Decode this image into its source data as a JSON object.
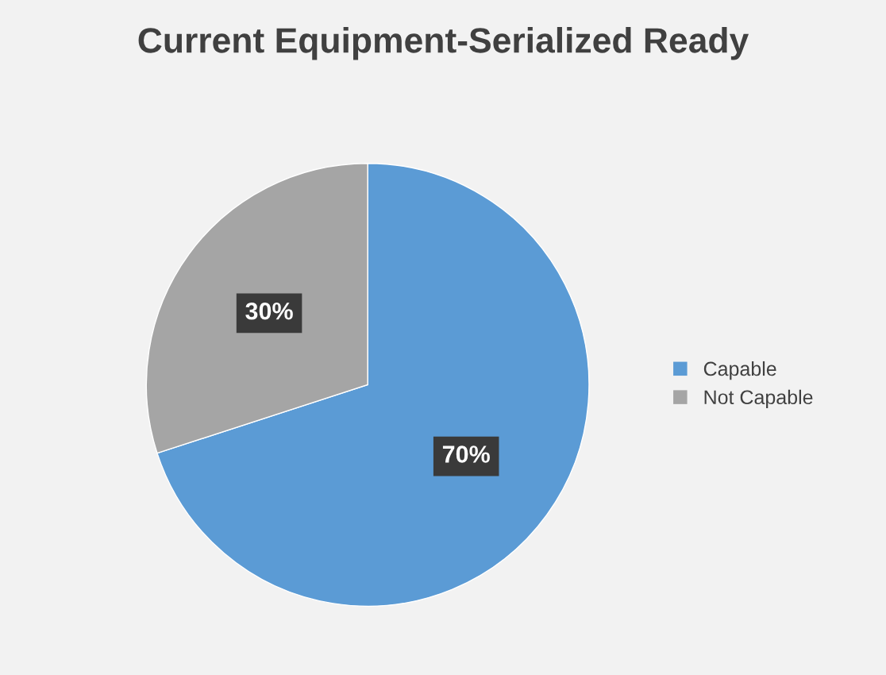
{
  "chart_data": {
    "type": "pie",
    "title": "Current Equipment-Serialized Ready",
    "categories": [
      "Capable",
      "Not Capable"
    ],
    "values": [
      70,
      30
    ],
    "colors": [
      "#5b9bd5",
      "#a5a5a5"
    ],
    "value_labels": [
      "70%",
      "30%"
    ],
    "legend": "right"
  }
}
